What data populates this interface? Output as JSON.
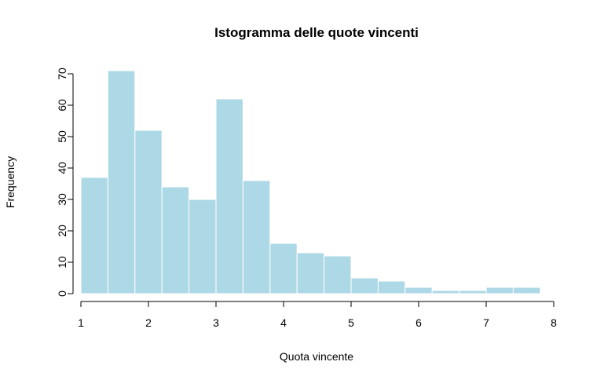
{
  "chart_data": {
    "type": "bar",
    "title": "Istogramma delle quote vincenti",
    "xlabel": "Quota vincente",
    "ylabel": "Frequency",
    "bin_edges": [
      1.0,
      1.4,
      1.8,
      2.2,
      2.6,
      3.0,
      3.4,
      3.8,
      4.2,
      4.6,
      5.0,
      5.4,
      5.8,
      6.2,
      6.6,
      7.0,
      7.4,
      7.8
    ],
    "values": [
      37,
      71,
      52,
      34,
      30,
      62,
      36,
      16,
      13,
      12,
      5,
      4,
      2,
      1,
      1,
      2,
      2
    ],
    "xlim": [
      1,
      8
    ],
    "ylim": [
      0,
      70
    ],
    "xticks": [
      "1",
      "2",
      "3",
      "4",
      "5",
      "6",
      "7",
      "8"
    ],
    "yticks": [
      "0",
      "10",
      "20",
      "30",
      "40",
      "50",
      "60",
      "70"
    ],
    "bar_color": "#add8e6",
    "grid": false,
    "legend": "none"
  }
}
